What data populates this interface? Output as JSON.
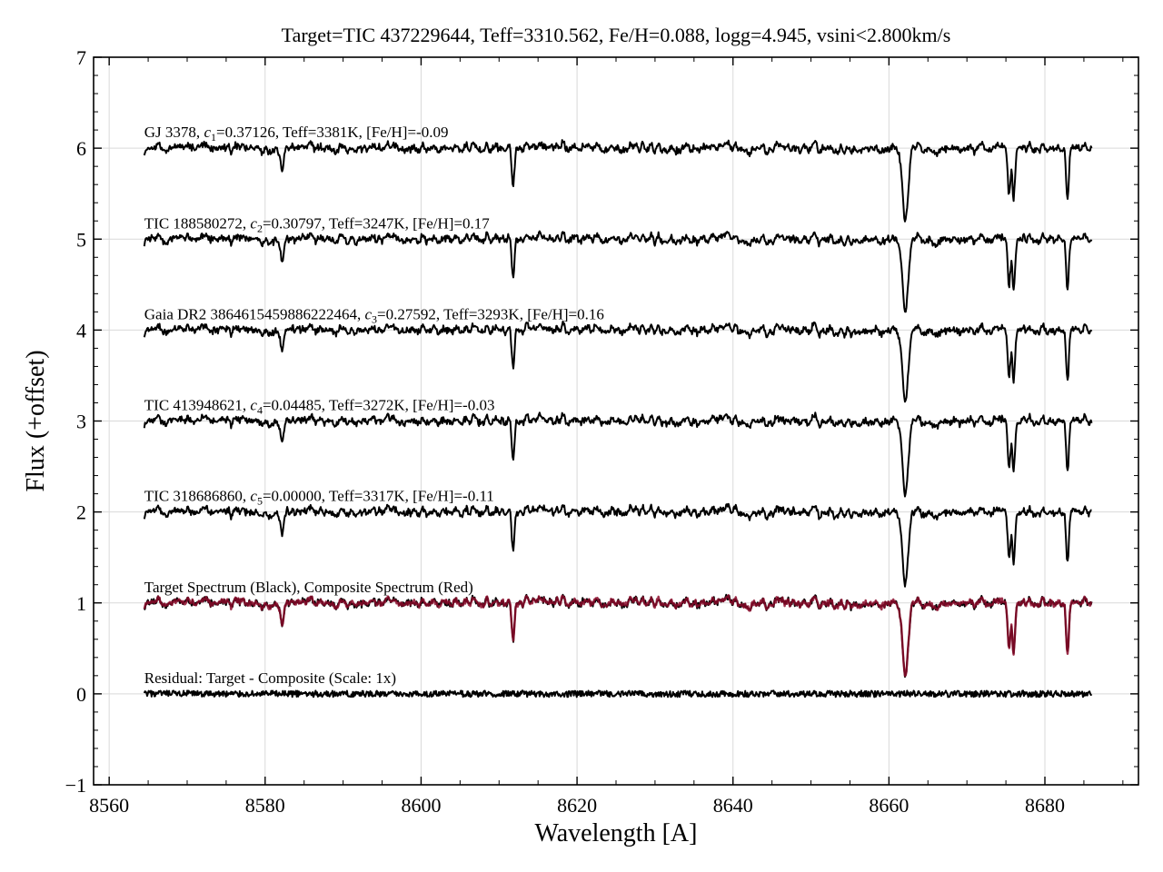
{
  "chart_data": {
    "type": "line",
    "title": "Target=TIC 437229644, Teff=3310.562, Fe/H=0.088, logg=4.945, vsini<2.800km/s",
    "xlabel": "Wavelength [A]",
    "ylabel": "Flux (+offset)",
    "xlim": [
      8558,
      8692
    ],
    "ylim": [
      -1,
      7
    ],
    "xticks": [
      8560,
      8580,
      8600,
      8620,
      8640,
      8660,
      8680
    ],
    "yticks": [
      -1,
      0,
      1,
      2,
      3,
      4,
      5,
      6,
      7
    ],
    "ytick_labels": [
      "−1",
      "0",
      "1",
      "2",
      "3",
      "4",
      "5",
      "6",
      "7"
    ],
    "grid": true,
    "x_range": [
      8564.5,
      8686
    ],
    "absorption_lines": [
      {
        "center": 8582.2,
        "depth": 0.22
      },
      {
        "center": 8611.8,
        "depth": 0.38
      },
      {
        "center": 8662.1,
        "depth": 0.78
      },
      {
        "center": 8675.4,
        "depth": 0.5
      },
      {
        "center": 8676.0,
        "depth": 0.55
      },
      {
        "center": 8682.9,
        "depth": 0.55
      }
    ],
    "series": [
      {
        "offset": 6,
        "color": "#000000",
        "annotation": {
          "prefix": "GJ 3378, ",
          "coef_symbol": "c",
          "coef_sub": "1",
          "suffix": "=0.37126, Teff=3381K, [Fe/H]=-0.09"
        }
      },
      {
        "offset": 5,
        "color": "#000000",
        "annotation": {
          "prefix": "TIC 188580272, ",
          "coef_symbol": "c",
          "coef_sub": "2",
          "suffix": "=0.30797, Teff=3247K, [Fe/H]=0.17"
        }
      },
      {
        "offset": 4,
        "color": "#000000",
        "annotation": {
          "prefix": "Gaia DR2 3864615459886222464, ",
          "coef_symbol": "c",
          "coef_sub": "3",
          "suffix": "=0.27592, Teff=3293K, [Fe/H]=0.16"
        }
      },
      {
        "offset": 3,
        "color": "#000000",
        "annotation": {
          "prefix": "TIC 413948621, ",
          "coef_symbol": "c",
          "coef_sub": "4",
          "suffix": "=0.04485, Teff=3272K, [Fe/H]=-0.03"
        }
      },
      {
        "offset": 2,
        "color": "#000000",
        "annotation": {
          "prefix": "TIC 318686860, ",
          "coef_symbol": "c",
          "coef_sub": "5",
          "suffix": "=0.00000, Teff=3317K, [Fe/H]=-0.11"
        }
      },
      {
        "offset": 1,
        "color": "#000000",
        "overlay_color": "#8b0a2a",
        "annotation": {
          "prefix": "Target Spectrum (Black), Composite Spectrum (Red)",
          "coef_symbol": "",
          "coef_sub": "",
          "suffix": ""
        }
      },
      {
        "offset": 0,
        "color": "#000000",
        "residual": true,
        "annotation": {
          "prefix": "Residual: Target - Composite (Scale: 1x)",
          "coef_symbol": "",
          "coef_sub": "",
          "suffix": ""
        }
      }
    ]
  }
}
